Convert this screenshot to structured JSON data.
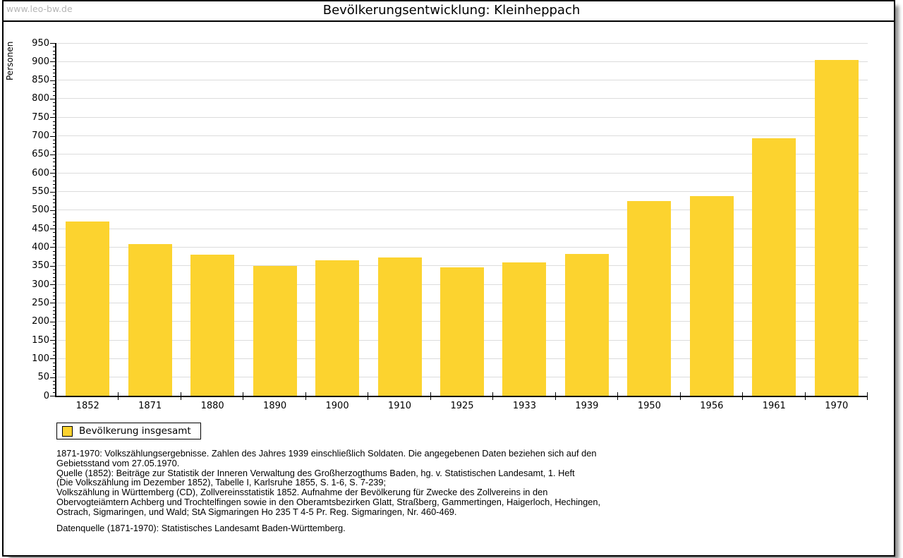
{
  "site": {
    "watermark": "www.leo-bw.de"
  },
  "chart_data": {
    "type": "bar",
    "title": "Bevölkerungsentwicklung: Kleinheppach",
    "ylabel": "Personen",
    "xlabel": "",
    "categories": [
      "1852",
      "1871",
      "1880",
      "1890",
      "1900",
      "1910",
      "1925",
      "1933",
      "1939",
      "1950",
      "1956",
      "1961",
      "1970"
    ],
    "values": [
      470,
      409,
      380,
      350,
      365,
      372,
      345,
      360,
      381,
      525,
      537,
      694,
      905
    ],
    "ylim": [
      0,
      950
    ],
    "y_major_step": 50,
    "y_minor_step": 10,
    "grid": "horizontal-major",
    "bar_color": "#FCD32F",
    "legend": {
      "position": "bottom-left",
      "entries": [
        {
          "label": "Bevölkerung insgesamt",
          "color": "#FCD32F"
        }
      ]
    }
  },
  "colors": {
    "bar": "#FCD32F",
    "gridline": "#DCDCDC",
    "axis": "#000000",
    "watermark_text": "#B5B5B5",
    "frame_shadow": "#8F8F8F"
  },
  "footnotes": {
    "lines": [
      "1871-1970: Volkszählungsergebnisse. Zahlen des Jahres 1939 einschließlich Soldaten. Die angegebenen Daten beziehen sich auf den",
      "Gebietsstand vom 27.05.1970.",
      "Quelle (1852): Beiträge zur Statistik der Inneren Verwaltung des Großherzogthums Baden, hg. v. Statistischen Landesamt, 1. Heft",
      "(Die Volkszählung im Dezember 1852), Tabelle I, Karlsruhe 1855, S. 1-6, S. 7-239;",
      "Volkszählung in Württemberg (CD), Zollvereinsstatistik 1852. Aufnahme der Bevölkerung für Zwecke des Zollvereins in den",
      "Obervogteiämtern Achberg und Trochtelfingen sowie in den Oberamtsbezirken Glatt, Straßberg, Gammertingen, Haigerloch, Hechingen,",
      "Ostrach, Sigmaringen, und Wald; StA Sigmaringen Ho 235 T 4-5 Pr. Reg. Sigmaringen, Nr. 460-469."
    ],
    "datasource": "Datenquelle (1871-1970): Statistisches Landesamt Baden-Württemberg."
  }
}
